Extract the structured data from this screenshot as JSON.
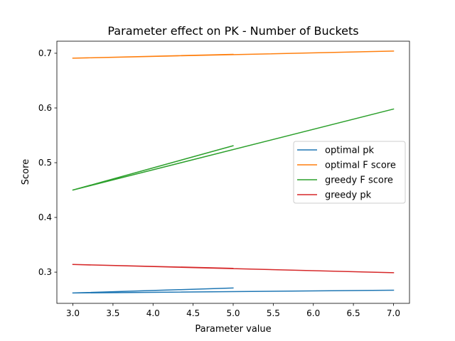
{
  "chart_data": {
    "type": "line",
    "title": "Parameter effect on PK - Number of Buckets",
    "xlabel": "Parameter value",
    "ylabel": "Score",
    "xlim": [
      2.8,
      7.2
    ],
    "ylim": [
      0.243,
      0.722
    ],
    "x_ticks": [
      "3.0",
      "3.5",
      "4.0",
      "4.5",
      "5.0",
      "5.5",
      "6.0",
      "6.5",
      "7.0"
    ],
    "y_ticks": [
      "0.3",
      "0.4",
      "0.5",
      "0.6",
      "0.7"
    ],
    "grid": false,
    "legend_position": "center-right",
    "series": [
      {
        "name": "optimal pk",
        "color": "#1f77b4",
        "x": [
          3,
          5,
          3,
          7
        ],
        "y": [
          0.262,
          0.271,
          0.262,
          0.267
        ]
      },
      {
        "name": "optimal F score",
        "color": "#ff7f0e",
        "x": [
          3,
          5,
          3,
          7
        ],
        "y": [
          0.691,
          0.698,
          0.691,
          0.704
        ]
      },
      {
        "name": "greedy F score",
        "color": "#2ca02c",
        "x": [
          3,
          5,
          3,
          7
        ],
        "y": [
          0.45,
          0.531,
          0.45,
          0.598
        ]
      },
      {
        "name": "greedy pk",
        "color": "#d62728",
        "x": [
          3,
          5,
          3,
          7
        ],
        "y": [
          0.314,
          0.307,
          0.314,
          0.299
        ]
      }
    ]
  }
}
